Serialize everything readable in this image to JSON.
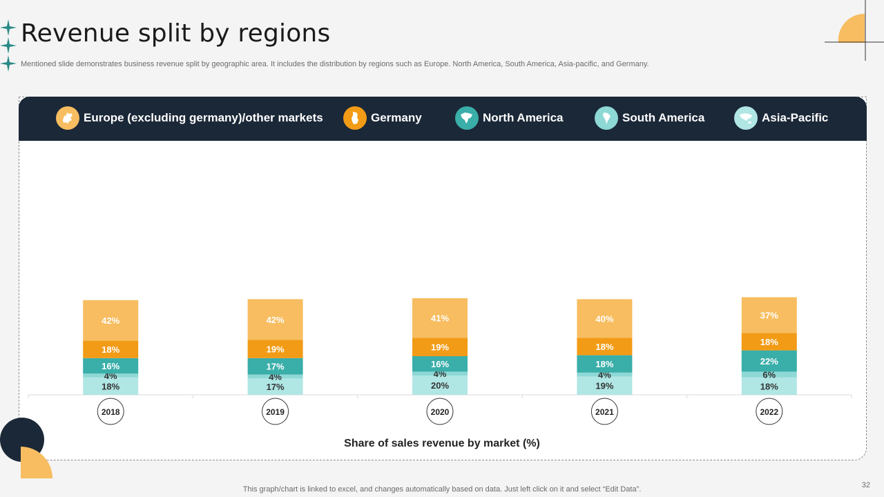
{
  "title": "Revenue split by regions",
  "subtitle": "Mentioned slide demonstrates business revenue split by geographic area. It includes the distribution by regions such as Europe. North America, South America, Asia-pacific, and Germany.",
  "footer": "This graph/chart is linked to excel,  and changes automatically based on data. Just left click on it and select “Edit Data”.",
  "page_number": "32",
  "legend": [
    {
      "label": "Europe (excluding germany)/other markets",
      "color": "#f7bd60",
      "icon": "europe-map-icon"
    },
    {
      "label": "Germany",
      "color": "#f29b16",
      "icon": "germany-map-icon"
    },
    {
      "label": "North America",
      "color": "#3aaea9",
      "icon": "north-america-map-icon"
    },
    {
      "label": "South America",
      "color": "#8ed8d6",
      "icon": "south-america-map-icon"
    },
    {
      "label": "Asia-Pacific",
      "color": "#b0e6e4",
      "icon": "asia-pacific-map-icon"
    }
  ],
  "chart_data": {
    "type": "bar",
    "stacked": true,
    "xlabel": "Share of sales revenue by market (%)",
    "categories": [
      "2018",
      "2019",
      "2020",
      "2021",
      "2022"
    ],
    "series": [
      {
        "name": "Asia-Pacific",
        "color": "#b0e6e4",
        "values": [
          18,
          17,
          20,
          19,
          18
        ]
      },
      {
        "name": "South America",
        "color": "#8ed8d6",
        "values": [
          4,
          4,
          4,
          4,
          6
        ]
      },
      {
        "name": "North America",
        "color": "#3aaea9",
        "values": [
          16,
          17,
          16,
          18,
          22
        ]
      },
      {
        "name": "Germany",
        "color": "#f29b16",
        "values": [
          18,
          19,
          19,
          18,
          18
        ]
      },
      {
        "name": "Europe (excluding germany)/other markets",
        "color": "#f7bd60",
        "values": [
          42,
          42,
          41,
          40,
          37
        ]
      }
    ],
    "value_suffix": "%",
    "grid": false,
    "legend_position": "top"
  }
}
